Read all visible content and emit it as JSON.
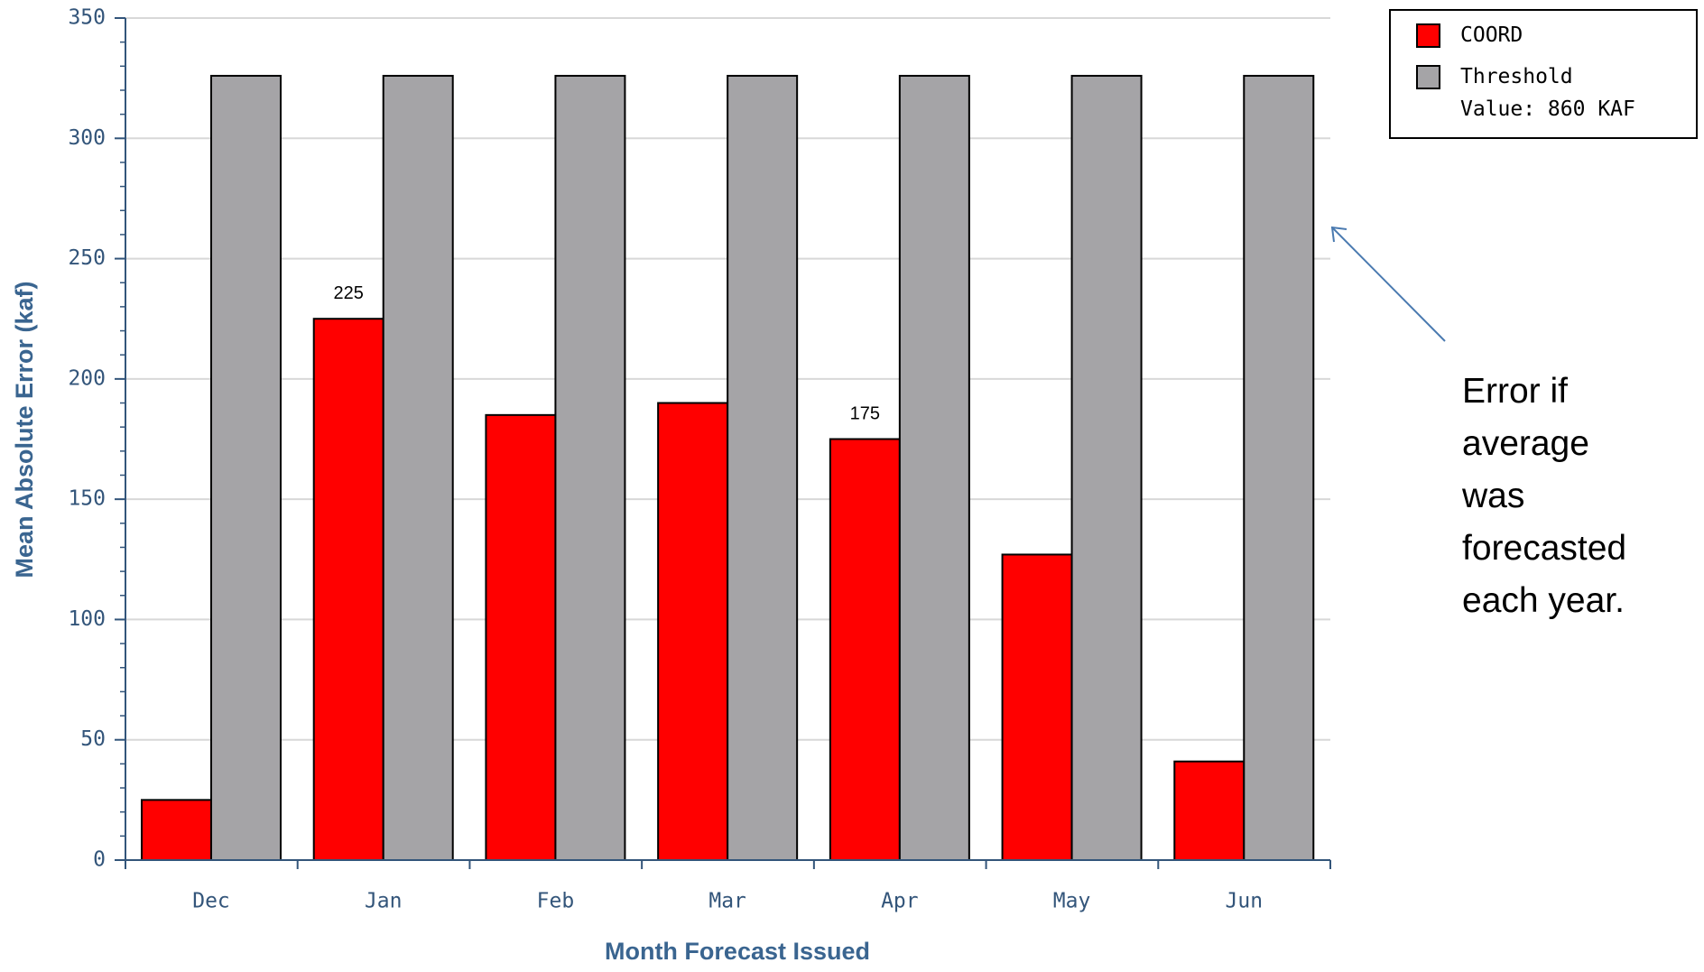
{
  "chart_data": {
    "type": "bar",
    "categories": [
      "Dec",
      "Jan",
      "Feb",
      "Mar",
      "Apr",
      "May",
      "Jun"
    ],
    "series": [
      {
        "name": "COORD",
        "color": "#ff0000",
        "values": [
          25,
          225,
          185,
          190,
          175,
          127,
          41
        ],
        "value_labels": [
          null,
          "225",
          null,
          null,
          "175",
          null,
          null
        ]
      },
      {
        "name": "Threshold Value: 860 KAF",
        "color": "#a5a4a7",
        "values": [
          326,
          326,
          326,
          326,
          326,
          326,
          326
        ]
      }
    ],
    "ylim": [
      0,
      350
    ],
    "yticks": [
      0,
      50,
      100,
      150,
      200,
      250,
      300,
      350
    ],
    "grid": true,
    "x_label": "Month Forecast Issued",
    "y_label": "Mean Absolute Error (kaf)",
    "legend": "top-right",
    "annotation": "Error if average was forecasted each year."
  }
}
